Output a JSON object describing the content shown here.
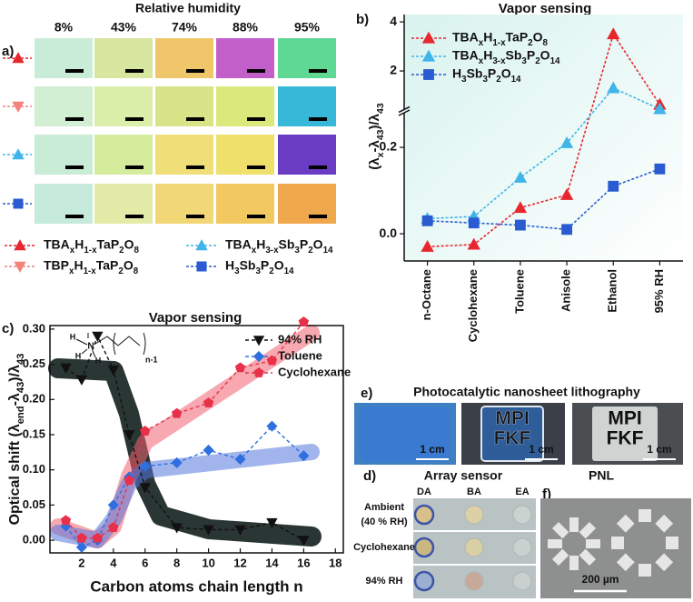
{
  "panel_labels": {
    "a": "a)",
    "b": "b)",
    "c": "c)",
    "d": "d)",
    "e": "e)",
    "f": "f)"
  },
  "panel_a": {
    "title": "Relative humidity",
    "columns": [
      "8%",
      "43%",
      "74%",
      "88%",
      "95%"
    ],
    "legend": [
      {
        "name": "TBAxH1-xTaP2O8",
        "color": "#e8262e",
        "marker": "triangle-up"
      },
      {
        "name": "TBPxH1-xTaP2O8",
        "color": "#f4837b",
        "marker": "triangle-down"
      },
      {
        "name": "TBAxH3-xSb3P2O14",
        "color": "#3fb5e8",
        "marker": "triangle-up"
      },
      {
        "name": "H3Sb3P2O14",
        "color": "#2a5bd0",
        "marker": "square"
      }
    ]
  },
  "chart_data": [
    {
      "type": "line",
      "title": "Vapor sensing",
      "y_label": "(λx-λ43)/λ43",
      "categories": [
        "n-Octane",
        "Cyclohexane",
        "Toluene",
        "Anisole",
        "Ethanol",
        "95% RH"
      ],
      "series": [
        {
          "name": "TBAxH1-xTaP2O8",
          "color": "#e8262e",
          "marker": "triangle-up",
          "values": [
            -0.03,
            -0.025,
            0.06,
            0.09,
            3.5,
            0.63
          ]
        },
        {
          "name": "TBAxH3-xSb3P2O14",
          "color": "#3fb5e8",
          "marker": "triangle-up",
          "values": [
            0.035,
            0.04,
            0.13,
            0.21,
            1.3,
            0.45
          ]
        },
        {
          "name": "H3Sb3P2O14",
          "color": "#2a5bd0",
          "marker": "square",
          "values": [
            0.03,
            0.025,
            0.02,
            0.01,
            0.11,
            0.15
          ]
        }
      ],
      "ylim": [
        -0.063,
        0.28
      ],
      "yticks": [
        {
          "value": 0,
          "label": "0.0"
        },
        0.2
      ],
      "axis_break": true,
      "upper_ylim": [
        0.43,
        4.3
      ],
      "upper_yticks": [
        2,
        4
      ],
      "line_style": "dashed",
      "legend": "upper left"
    },
    {
      "type": "line",
      "title": "Vapor sensing",
      "x_label": "Carbon atoms chain length n",
      "y_label": "Optical shift (λend-λ43)/λ43",
      "x": [
        1,
        2,
        3,
        4,
        5,
        6,
        8,
        10,
        12,
        14,
        16
      ],
      "series": [
        {
          "name": "94% RH",
          "color": "#111111",
          "marker": "triangle-down",
          "values": [
            0.245,
            0.228,
            0.29,
            0.242,
            0.15,
            0.075,
            0.018,
            0.015,
            0.015,
            0.025,
            0.0
          ]
        },
        {
          "name": "Toluene",
          "color": "#2f6fe0",
          "marker": "diamond",
          "values": [
            0.02,
            -0.01,
            0.0,
            0.05,
            0.09,
            0.105,
            0.11,
            0.128,
            0.115,
            0.162,
            0.12
          ]
        },
        {
          "name": "Cyclohexane",
          "color": "#e8304a",
          "marker": "pentagon",
          "values": [
            0.028,
            0.003,
            0.003,
            0.018,
            0.085,
            0.155,
            0.18,
            0.195,
            0.245,
            0.255,
            0.31
          ]
        }
      ],
      "xlim": [
        0,
        18.5
      ],
      "xticks": [
        2,
        4,
        6,
        8,
        10,
        12,
        14,
        16,
        18
      ],
      "ylim": [
        -0.018,
        0.305
      ],
      "yticks": [
        {
          "value": 0,
          "label": "0.00"
        },
        0.05,
        {
          "value": 0.1,
          "label": "0.10"
        },
        0.15,
        {
          "value": 0.2,
          "label": "0.20"
        },
        0.25,
        {
          "value": 0.3,
          "label": "0.30"
        }
      ],
      "line_style": "dashed",
      "legend": "upper right",
      "inset_labels": [
        "H",
        "H",
        "H",
        "N",
        "n-1"
      ]
    }
  ],
  "panel_e": {
    "title": "Photocatalytic nanosheet lithography",
    "photos": [
      {
        "scale_bar": "1 cm"
      },
      {
        "text": [
          "MPI",
          "FKF"
        ],
        "scale_bar": "1 cm"
      },
      {
        "text": [
          "MPI",
          "FKF"
        ],
        "scale_bar": "1 cm"
      }
    ]
  },
  "panel_d": {
    "title": "Array sensor",
    "columns": [
      "DA",
      "BA",
      "EA"
    ],
    "rows": [
      [
        "Ambient",
        "(40 % RH)"
      ],
      [
        "Cyclohexane"
      ],
      [
        "94% RH"
      ]
    ]
  },
  "panel_f": {
    "title": "PNL",
    "scale_bar": "200 µm"
  }
}
